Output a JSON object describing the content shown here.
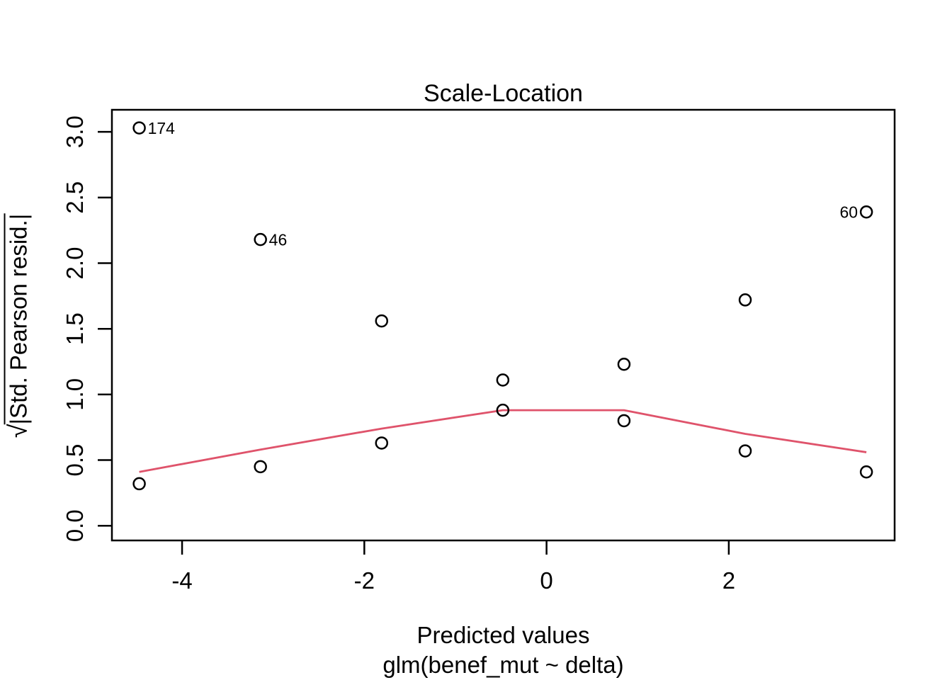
{
  "figure": {
    "title": "Scale-Location",
    "xlabel": "Predicted values",
    "xlabel_sub": "glm(benef_mut ~ delta)",
    "ylabel_radical": "√",
    "ylabel_radicand": "|Std. Pearson resid.|",
    "ylabel_full": "√|Std. Pearson resid.|"
  },
  "chart_data": {
    "type": "scatter",
    "title": "Scale-Location",
    "xlabel": "Predicted values",
    "model_caption": "glm(benef_mut ~ delta)",
    "ylabel": "√|Std. Pearson resid.|",
    "grid": false,
    "legend": "none",
    "xlim": [
      -4.77,
      3.82
    ],
    "ylim": [
      -0.112,
      3.168
    ],
    "x_ticks": [
      -4,
      -2,
      0,
      2
    ],
    "x_tick_labels": [
      "-4",
      "-2",
      "0",
      "2"
    ],
    "y_ticks": [
      0.0,
      0.5,
      1.0,
      1.5,
      2.0,
      2.5,
      3.0
    ],
    "y_tick_labels": [
      "0.0",
      "0.5",
      "1.0",
      "1.5",
      "2.0",
      "2.5",
      "3.0"
    ],
    "point_color": "#000000",
    "point_style": "open-circle",
    "points": [
      {
        "x": -4.47,
        "y": 3.03,
        "label": "174",
        "label_side": "right"
      },
      {
        "x": -3.14,
        "y": 2.18,
        "label": "46",
        "label_side": "right"
      },
      {
        "x": -1.81,
        "y": 1.56
      },
      {
        "x": -0.48,
        "y": 1.11
      },
      {
        "x": 0.85,
        "y": 1.23
      },
      {
        "x": 2.18,
        "y": 1.72
      },
      {
        "x": 3.51,
        "y": 2.39,
        "label": "60",
        "label_side": "left"
      },
      {
        "x": -4.47,
        "y": 0.32
      },
      {
        "x": -3.14,
        "y": 0.45
      },
      {
        "x": -1.81,
        "y": 0.63
      },
      {
        "x": -0.48,
        "y": 0.88
      },
      {
        "x": 0.85,
        "y": 0.8
      },
      {
        "x": 2.18,
        "y": 0.57
      },
      {
        "x": 3.51,
        "y": 0.41
      }
    ],
    "smooth_line": {
      "color": "#DF536B",
      "points": [
        {
          "x": -4.47,
          "y": 0.41
        },
        {
          "x": -3.14,
          "y": 0.58
        },
        {
          "x": -1.81,
          "y": 0.74
        },
        {
          "x": -0.48,
          "y": 0.88
        },
        {
          "x": 0.85,
          "y": 0.88
        },
        {
          "x": 2.18,
          "y": 0.7
        },
        {
          "x": 3.51,
          "y": 0.56
        }
      ]
    }
  }
}
